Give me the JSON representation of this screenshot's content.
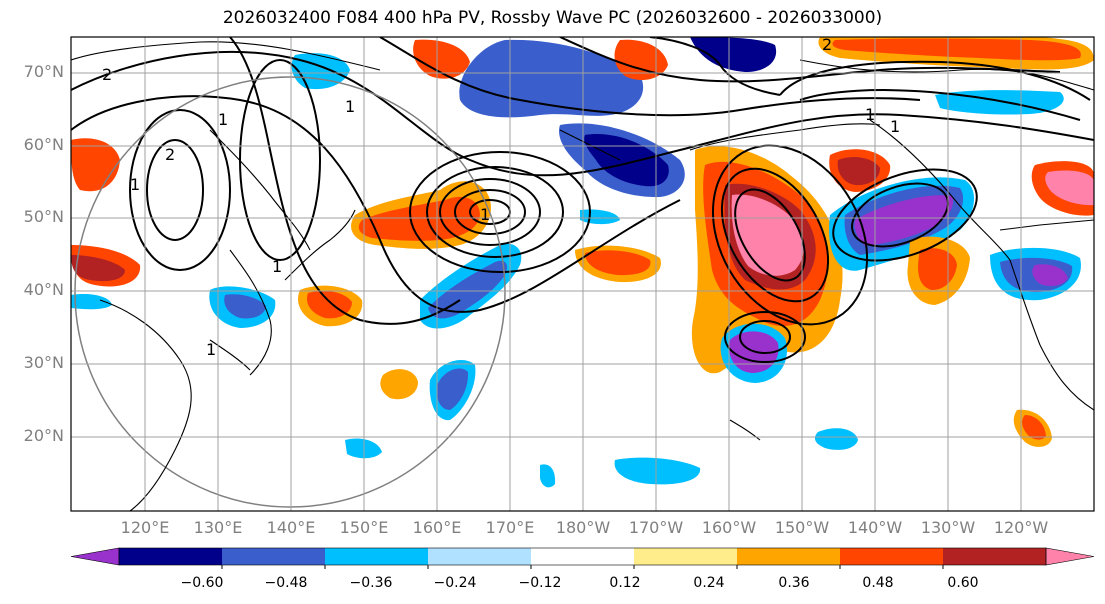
{
  "title": "2026032400 F084 400 hPa PV, Rossby Wave PC (2026032600 - 2026033000)",
  "lat_labels": [
    "70°N",
    "60°N",
    "50°N",
    "40°N",
    "30°N",
    "20°N"
  ],
  "lon_labels": [
    "120°E",
    "130°E",
    "140°E",
    "150°E",
    "160°E",
    "170°E",
    "180°W",
    "170°W",
    "160°W",
    "150°W",
    "140°W",
    "130°W",
    "120°W"
  ],
  "contour_labels": [
    "2",
    "1",
    "1",
    "2",
    "1",
    "1",
    "1",
    "2",
    "1",
    "1",
    "1"
  ],
  "colorbar": {
    "colors": [
      "#9932cc",
      "#00008b",
      "#3a5fcd",
      "#00bfff",
      "#b0e2ff",
      "#ffffff",
      "#ffec8b",
      "#ffa500",
      "#ff4500",
      "#b22222",
      "#ff82ab"
    ],
    "tick_labels": [
      "−0.60",
      "−0.48",
      "−0.36",
      "−0.24",
      "−0.12",
      "0.12",
      "0.24",
      "0.36",
      "0.48",
      "0.60"
    ]
  }
}
